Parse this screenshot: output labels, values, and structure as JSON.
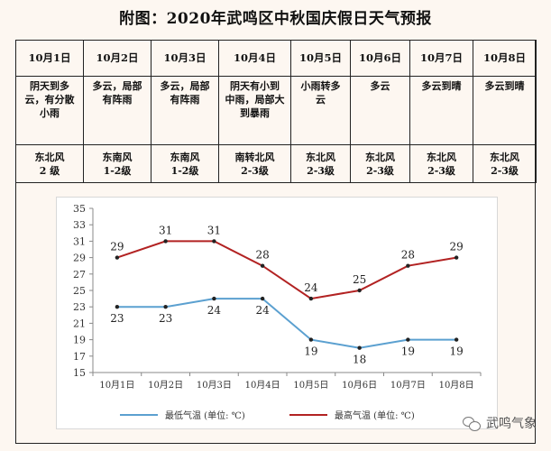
{
  "title": "附图：2020年武鸣区中秋国庆假日天气预报",
  "table": {
    "dates": [
      "10月1日",
      "10月2日",
      "10月3日",
      "10月4日",
      "10月5日",
      "10月6日",
      "10月7日",
      "10月8日"
    ],
    "weather": [
      [
        "阴天到多",
        "云，有分散",
        "小雨"
      ],
      [
        "多云，局部",
        "有阵雨"
      ],
      [
        "多云，局部",
        "有阵雨"
      ],
      [
        "阴天有小到",
        "中雨，局部大",
        "到暴雨"
      ],
      [
        "小雨转多",
        "云"
      ],
      [
        "多云"
      ],
      [
        "多云到晴"
      ],
      [
        "多云到晴"
      ]
    ],
    "wind": [
      [
        "东北风",
        "2 级"
      ],
      [
        "东南风",
        "1-2级"
      ],
      [
        "东南风",
        "1-2级"
      ],
      [
        "南转北风",
        "2-3级"
      ],
      [
        "东北风",
        "2-3级"
      ],
      [
        "东北风",
        "2-3级"
      ],
      [
        "东北风",
        "2-3级"
      ],
      [
        "东北风",
        "2-3级"
      ]
    ]
  },
  "chart_data": {
    "type": "line",
    "categories": [
      "10月1日",
      "10月2日",
      "10月3日",
      "10月4日",
      "10月5日",
      "10月6日",
      "10月7日",
      "10月8日"
    ],
    "series": [
      {
        "name": "最低气温 (单位: ℃)",
        "values": [
          23,
          23,
          24,
          24,
          19,
          18,
          19,
          19
        ],
        "color": "#5ba0d0"
      },
      {
        "name": "最高气温 (单位: ℃)",
        "values": [
          29,
          31,
          31,
          28,
          24,
          25,
          28,
          29
        ],
        "color": "#b22222"
      }
    ],
    "ylim": [
      15,
      35
    ],
    "yticks": [
      15,
      17,
      19,
      21,
      23,
      25,
      27,
      29,
      31,
      33,
      35
    ],
    "grid": false,
    "legend": "bottom"
  },
  "watermark": "武鸣气象"
}
